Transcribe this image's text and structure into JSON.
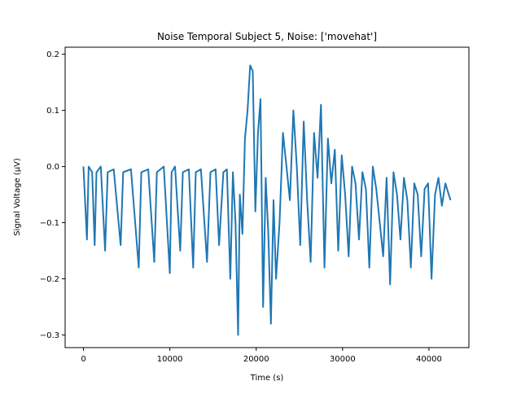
{
  "chart_data": {
    "type": "line",
    "title": "Noise Temporal Subject 5, Noise: ['movehat']",
    "xlabel": "Time (s)",
    "ylabel": "Signal Voltage (µV)",
    "xlim": [
      -2125,
      44625
    ],
    "ylim": [
      -0.3225,
      0.2125
    ],
    "xticks": [
      0,
      10000,
      20000,
      30000,
      40000
    ],
    "xtick_labels": [
      "0",
      "10000",
      "20000",
      "30000",
      "40000"
    ],
    "yticks": [
      -0.3,
      -0.2,
      -0.1,
      0.0,
      0.1,
      0.2
    ],
    "ytick_labels": [
      "−0.3",
      "−0.2",
      "−0.1",
      "0.0",
      "0.1",
      "0.2"
    ],
    "grid": false,
    "series": [
      {
        "color": "#1f77b4",
        "x": [
          0,
          400,
          600,
          1000,
          1300,
          1500,
          2000,
          2500,
          2800,
          3500,
          4300,
          4600,
          5500,
          6400,
          6700,
          7500,
          8200,
          8500,
          9300,
          10000,
          10200,
          10600,
          11200,
          11500,
          12200,
          12700,
          13000,
          13600,
          14300,
          14700,
          15300,
          15700,
          16200,
          16600,
          17000,
          17300,
          17600,
          17900,
          18100,
          18400,
          18700,
          19000,
          19300,
          19600,
          19900,
          20200,
          20500,
          20800,
          21100,
          21400,
          21700,
          22000,
          22300,
          22700,
          23100,
          23500,
          23900,
          24300,
          24700,
          25100,
          25500,
          25900,
          26300,
          26700,
          27100,
          27500,
          27900,
          28300,
          28700,
          29100,
          29500,
          29900,
          30300,
          30700,
          31100,
          31500,
          31900,
          32300,
          32700,
          33100,
          33500,
          33900,
          34300,
          34700,
          35100,
          35500,
          35900,
          36300,
          36700,
          37100,
          37500,
          37900,
          38300,
          38700,
          39100,
          39500,
          39900,
          40300,
          40700,
          41100,
          41500,
          41900,
          42300,
          42500
        ],
        "y": [
          0.0,
          -0.13,
          0.0,
          -0.01,
          -0.14,
          -0.01,
          0.0,
          -0.15,
          -0.01,
          -0.005,
          -0.14,
          -0.01,
          -0.005,
          -0.18,
          -0.01,
          -0.005,
          -0.17,
          -0.01,
          0.0,
          -0.19,
          -0.01,
          0.0,
          -0.15,
          -0.01,
          -0.005,
          -0.18,
          -0.01,
          -0.005,
          -0.17,
          -0.01,
          -0.005,
          -0.14,
          -0.01,
          -0.005,
          -0.2,
          -0.01,
          -0.1,
          -0.3,
          -0.05,
          -0.12,
          0.05,
          0.1,
          0.18,
          0.17,
          -0.08,
          0.06,
          0.12,
          -0.25,
          -0.02,
          -0.12,
          -0.28,
          -0.06,
          -0.2,
          -0.1,
          0.06,
          0.0,
          -0.06,
          0.1,
          0.0,
          -0.14,
          0.08,
          -0.06,
          -0.17,
          0.06,
          -0.02,
          0.11,
          -0.18,
          0.05,
          -0.03,
          0.03,
          -0.15,
          0.02,
          -0.05,
          -0.16,
          0.0,
          -0.03,
          -0.13,
          -0.01,
          -0.04,
          -0.18,
          0.0,
          -0.04,
          -0.1,
          -0.16,
          -0.02,
          -0.21,
          -0.01,
          -0.05,
          -0.13,
          -0.02,
          -0.06,
          -0.18,
          -0.03,
          -0.05,
          -0.16,
          -0.04,
          -0.03,
          -0.2,
          -0.05,
          -0.02,
          -0.07,
          -0.03,
          -0.05,
          -0.06
        ]
      }
    ]
  }
}
